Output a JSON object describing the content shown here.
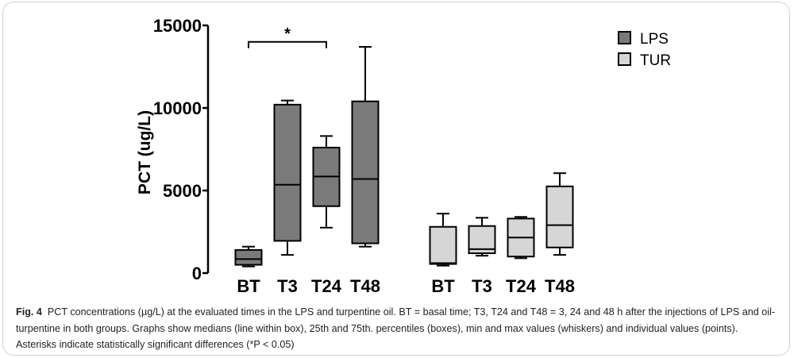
{
  "chart_data": {
    "type": "box",
    "ylabel": "PCT (ug/L)",
    "ylim": [
      0,
      15000
    ],
    "yticks": [
      0,
      5000,
      10000,
      15000
    ],
    "legend_position": "top-right",
    "groups": [
      {
        "name": "LPS",
        "color": "#7a7a7a",
        "boxes": [
          {
            "category": "BT",
            "min": 400,
            "q1": 500,
            "median": 850,
            "q3": 1400,
            "max": 1600
          },
          {
            "category": "T3",
            "min": 1100,
            "q1": 1950,
            "median": 5350,
            "q3": 10200,
            "max": 10450
          },
          {
            "category": "T24",
            "min": 2750,
            "q1": 4050,
            "median": 5850,
            "q3": 7600,
            "max": 8300
          },
          {
            "category": "T48",
            "min": 1600,
            "q1": 1800,
            "median": 5700,
            "q3": 10400,
            "max": 13700
          }
        ]
      },
      {
        "name": "TUR",
        "color": "#d6d6d6",
        "boxes": [
          {
            "category": "BT",
            "min": 450,
            "q1": 550,
            "median": 600,
            "q3": 2800,
            "max": 3600
          },
          {
            "category": "T3",
            "min": 1050,
            "q1": 1200,
            "median": 1450,
            "q3": 2850,
            "max": 3350
          },
          {
            "category": "T24",
            "min": 900,
            "q1": 1000,
            "median": 2150,
            "q3": 3300,
            "max": 3400
          },
          {
            "category": "T48",
            "min": 1100,
            "q1": 1550,
            "median": 2900,
            "q3": 5250,
            "max": 6050
          }
        ]
      }
    ],
    "annotations": [
      {
        "text": "*",
        "from": "LPS BT",
        "to": "LPS T24"
      }
    ]
  },
  "caption": {
    "label": "Fig. 4",
    "text": "PCT concentrations (µg/L) at the evaluated times in the LPS and turpentine oil. BT = basal time; T3, T24 and T48 = 3, 24 and 48 h after the injections of LPS and oil-turpentine in both groups. Graphs show medians (line within box), 25th and 75th. percentiles (boxes), min and max values (whiskers) and individual values (points). Asterisks indicate statistically significant differences (*P < 0.05)"
  }
}
